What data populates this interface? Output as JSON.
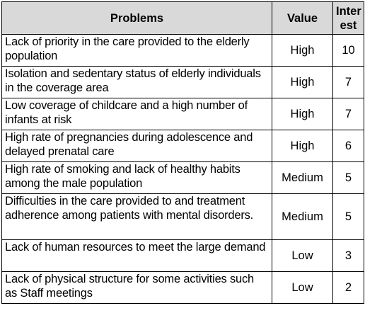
{
  "table": {
    "headers": {
      "problems": "Problems",
      "value": "Value",
      "interest_line1": "Inter",
      "interest_line2": "est"
    },
    "rows": [
      {
        "problem": "Lack of priority in the care provided to the elderly population",
        "value": "High",
        "interest": "10"
      },
      {
        "problem": "Isolation and sedentary status of elderly individuals in the coverage area",
        "value": "High",
        "interest": "7"
      },
      {
        "problem": "Low coverage of childcare and a high number of infants at risk",
        "value": "High",
        "interest": "7"
      },
      {
        "problem": "High rate of pregnancies during adolescence and delayed prenatal care",
        "value": "High",
        "interest": "6"
      },
      {
        "problem": "High rate of smoking and lack of healthy habits among the male population",
        "value": "Medium",
        "interest": "5"
      },
      {
        "problem": "Difficulties in the care provided to and treatment adherence among patients with mental disorders.",
        "value": "Medium",
        "interest": "5"
      },
      {
        "problem": "Lack of human resources to meet the large demand",
        "value": "Low",
        "interest": "3"
      },
      {
        "problem": "Lack of physical structure for some activities such as Staff meetings",
        "value": "Low",
        "interest": "2"
      }
    ]
  }
}
